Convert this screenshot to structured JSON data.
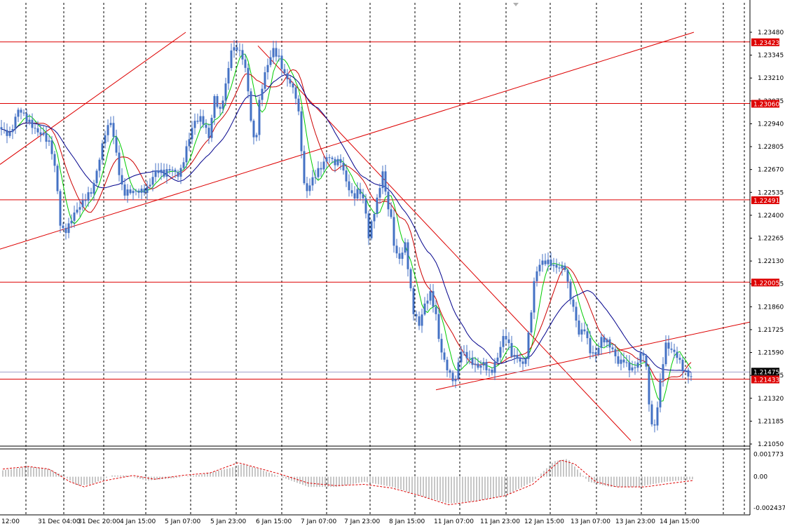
{
  "chart_data": {
    "type": "candlestick",
    "colors": {
      "background": "#ffffff",
      "grid": "#000000",
      "candles": "#4472c4",
      "ma_fast": "#00cc00",
      "ma_mid": "#cc0000",
      "ma_slow": "#00008b",
      "levels": "#dd0000",
      "trendlines": "#dd0000",
      "osc_bars": "#b4b4b4",
      "osc_signal": "#dd0000",
      "current_price_tag": "#000000",
      "bid_line": "#a0a0c8"
    },
    "price_axis": {
      "min": 1.2105,
      "max": 1.2348,
      "ticks": [
        "1.23480",
        "1.23345",
        "1.23210",
        "1.23075",
        "1.22940",
        "1.22805",
        "1.22670",
        "1.22535",
        "1.22400",
        "1.22265",
        "1.22130",
        "1.21995",
        "1.21860",
        "1.21725",
        "1.21590",
        "1.21455",
        "1.21320",
        "1.21185",
        "1.21050"
      ]
    },
    "time_axis": {
      "labels": [
        "12:00",
        "31 Dec 04:00",
        "31 Dec 20:00",
        "4 Jan 15:00",
        "5 Jan 07:00",
        "5 Jan 23:00",
        "6 Jan 15:00",
        "7 Jan 07:00",
        "7 Jan 23:00",
        "8 Jan 15:00",
        "11 Jan 07:00",
        "11 Jan 23:00",
        "12 Jan 15:00",
        "13 Jan 07:00",
        "13 Jan 23:00",
        "14 Jan 15:00"
      ]
    },
    "horizontal_levels": [
      "1.23423",
      "1.23060",
      "1.22491",
      "1.22005",
      "1.21433"
    ],
    "current_price": "1.21475",
    "price_path": [
      [
        0,
        1.2292
      ],
      [
        14,
        1.229
      ],
      [
        26,
        1.2302
      ],
      [
        38,
        1.2294
      ],
      [
        50,
        1.2291
      ],
      [
        62,
        1.229
      ],
      [
        72,
        1.2282
      ],
      [
        80,
        1.2262
      ],
      [
        86,
        1.2232
      ],
      [
        92,
        1.2228
      ],
      [
        98,
        1.2234
      ],
      [
        104,
        1.2242
      ],
      [
        112,
        1.2247
      ],
      [
        122,
        1.225
      ],
      [
        132,
        1.2252
      ],
      [
        140,
        1.2268
      ],
      [
        150,
        1.229
      ],
      [
        158,
        1.2298
      ],
      [
        166,
        1.2278
      ],
      [
        172,
        1.2258
      ],
      [
        178,
        1.2251
      ],
      [
        188,
        1.2252
      ],
      [
        200,
        1.2256
      ],
      [
        210,
        1.2258
      ],
      [
        222,
        1.2265
      ],
      [
        234,
        1.2262
      ],
      [
        244,
        1.2268
      ],
      [
        256,
        1.2266
      ],
      [
        266,
        1.228
      ],
      [
        276,
        1.2292
      ],
      [
        288,
        1.2296
      ],
      [
        298,
        1.2288
      ],
      [
        306,
        1.2312
      ],
      [
        314,
        1.2302
      ],
      [
        322,
        1.2315
      ],
      [
        330,
        1.2335
      ],
      [
        338,
        1.2338
      ],
      [
        346,
        1.2335
      ],
      [
        352,
        1.2325
      ],
      [
        358,
        1.2298
      ],
      [
        364,
        1.228
      ],
      [
        370,
        1.2305
      ],
      [
        376,
        1.2318
      ],
      [
        384,
        1.233
      ],
      [
        390,
        1.2338
      ],
      [
        398,
        1.2335
      ],
      [
        406,
        1.2325
      ],
      [
        414,
        1.2318
      ],
      [
        422,
        1.2308
      ],
      [
        428,
        1.2292
      ],
      [
        432,
        1.2262
      ],
      [
        436,
        1.2252
      ],
      [
        444,
        1.2262
      ],
      [
        452,
        1.2268
      ],
      [
        460,
        1.227
      ],
      [
        468,
        1.2274
      ],
      [
        476,
        1.2268
      ],
      [
        486,
        1.2272
      ],
      [
        494,
        1.2262
      ],
      [
        504,
        1.2252
      ],
      [
        512,
        1.2255
      ],
      [
        520,
        1.2245
      ],
      [
        526,
        1.2225
      ],
      [
        532,
        1.2238
      ],
      [
        538,
        1.225
      ],
      [
        546,
        1.2268
      ],
      [
        552,
        1.225
      ],
      [
        558,
        1.2238
      ],
      [
        564,
        1.2215
      ],
      [
        572,
        1.2212
      ],
      [
        578,
        1.2222
      ],
      [
        584,
        1.2202
      ],
      [
        590,
        1.2185
      ],
      [
        598,
        1.2178
      ],
      [
        606,
        1.2188
      ],
      [
        614,
        1.2192
      ],
      [
        622,
        1.2178
      ],
      [
        628,
        1.216
      ],
      [
        636,
        1.2153
      ],
      [
        642,
        1.2148
      ],
      [
        650,
        1.2144
      ],
      [
        656,
        1.216
      ],
      [
        662,
        1.2157
      ],
      [
        670,
        1.2152
      ],
      [
        680,
        1.215
      ],
      [
        690,
        1.2155
      ],
      [
        700,
        1.2148
      ],
      [
        710,
        1.2155
      ],
      [
        720,
        1.2168
      ],
      [
        730,
        1.2158
      ],
      [
        740,
        1.2158
      ],
      [
        748,
        1.2152
      ],
      [
        756,
        1.2175
      ],
      [
        762,
        1.2198
      ],
      [
        768,
        1.2208
      ],
      [
        776,
        1.2212
      ],
      [
        784,
        1.2214
      ],
      [
        792,
        1.2212
      ],
      [
        800,
        1.221
      ],
      [
        806,
        1.2208
      ],
      [
        812,
        1.2192
      ],
      [
        818,
        1.2183
      ],
      [
        826,
        1.217
      ],
      [
        834,
        1.2175
      ],
      [
        842,
        1.2162
      ],
      [
        850,
        1.2158
      ],
      [
        858,
        1.2165
      ],
      [
        866,
        1.2163
      ],
      [
        874,
        1.216
      ],
      [
        882,
        1.2155
      ],
      [
        890,
        1.2157
      ],
      [
        898,
        1.215
      ],
      [
        906,
        1.2148
      ],
      [
        914,
        1.2155
      ],
      [
        920,
        1.2158
      ],
      [
        926,
        1.213
      ],
      [
        932,
        1.2112
      ],
      [
        938,
        1.213
      ],
      [
        944,
        1.215
      ],
      [
        950,
        1.2163
      ],
      [
        958,
        1.2158
      ],
      [
        966,
        1.2155
      ],
      [
        974,
        1.215
      ],
      [
        982,
        1.2148
      ],
      [
        988,
        1.2147
      ]
    ],
    "oscillator": {
      "ticks": [
        "0.001773",
        "0.00",
        "-0.002437"
      ],
      "min": -0.00255,
      "max": 0.0019,
      "histogram": [
        [
          4,
          0.0005
        ],
        [
          40,
          0.0008
        ],
        [
          70,
          0.0006
        ],
        [
          90,
          0.0001
        ],
        [
          110,
          -0.0007
        ],
        [
          130,
          -0.0006
        ],
        [
          160,
          0.0001
        ],
        [
          180,
          0.0001
        ],
        [
          210,
          -0.0003
        ],
        [
          250,
          -0.0001
        ],
        [
          290,
          0.0002
        ],
        [
          330,
          0.0007
        ],
        [
          345,
          0.001
        ],
        [
          370,
          0.0006
        ],
        [
          400,
          0.0
        ],
        [
          440,
          -0.0008
        ],
        [
          480,
          -0.0008
        ],
        [
          520,
          -0.0004
        ],
        [
          560,
          -0.0008
        ],
        [
          600,
          -0.0015
        ],
        [
          640,
          -0.0021
        ],
        [
          680,
          -0.0019
        ],
        [
          720,
          -0.0015
        ],
        [
          760,
          -0.0004
        ],
        [
          790,
          0.0012
        ],
        [
          810,
          0.0014
        ],
        [
          840,
          -0.0004
        ],
        [
          870,
          -0.0008
        ],
        [
          910,
          -0.0008
        ],
        [
          950,
          -0.0004
        ],
        [
          988,
          -0.0002
        ]
      ],
      "signal": [
        [
          4,
          0.0006
        ],
        [
          40,
          0.0008
        ],
        [
          70,
          0.0006
        ],
        [
          100,
          -0.0004
        ],
        [
          120,
          -0.0008
        ],
        [
          150,
          -0.0003
        ],
        [
          190,
          0.0001
        ],
        [
          220,
          -0.0002
        ],
        [
          260,
          0.0001
        ],
        [
          300,
          0.0003
        ],
        [
          340,
          0.0011
        ],
        [
          360,
          0.0008
        ],
        [
          400,
          0.0002
        ],
        [
          440,
          -0.0005
        ],
        [
          480,
          -0.0007
        ],
        [
          520,
          -0.0006
        ],
        [
          560,
          -0.0009
        ],
        [
          600,
          -0.0015
        ],
        [
          640,
          -0.0022
        ],
        [
          680,
          -0.0019
        ],
        [
          720,
          -0.0015
        ],
        [
          760,
          -0.0006
        ],
        [
          800,
          0.0013
        ],
        [
          820,
          0.001
        ],
        [
          850,
          -0.0004
        ],
        [
          880,
          -0.0008
        ],
        [
          920,
          -0.0008
        ],
        [
          960,
          -0.0005
        ],
        [
          988,
          -0.0003
        ]
      ]
    }
  }
}
